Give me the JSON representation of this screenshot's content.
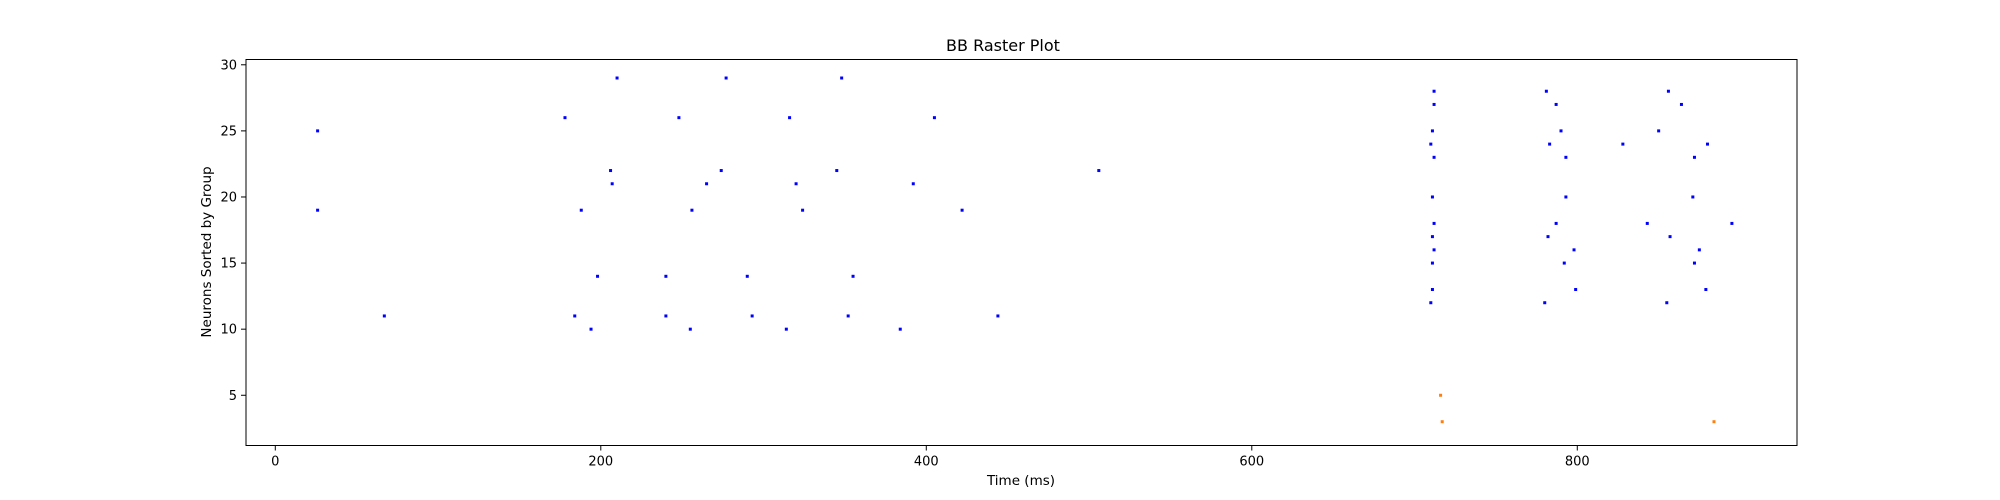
{
  "chart_data": {
    "type": "scatter",
    "title": "BB Raster Plot",
    "xlabel": "Time (ms)",
    "ylabel": "Neurons Sorted by Group",
    "xlim": [
      -18,
      935
    ],
    "ylim": [
      1.2,
      30.4
    ],
    "xticks": [
      0,
      200,
      400,
      600,
      800
    ],
    "yticks": [
      5,
      10,
      15,
      20,
      25,
      30
    ],
    "grid": false,
    "series": [
      {
        "color": "#0000ff",
        "points": [
          [
            26,
            25
          ],
          [
            26,
            19
          ],
          [
            67,
            11
          ],
          [
            178,
            26
          ],
          [
            184,
            11
          ],
          [
            188,
            19
          ],
          [
            194,
            10
          ],
          [
            198,
            14
          ],
          [
            206,
            22
          ],
          [
            207,
            21
          ],
          [
            210,
            29
          ],
          [
            240,
            11
          ],
          [
            240,
            14
          ],
          [
            248,
            26
          ],
          [
            255,
            10
          ],
          [
            256,
            19
          ],
          [
            265,
            21
          ],
          [
            274,
            22
          ],
          [
            277,
            29
          ],
          [
            290,
            14
          ],
          [
            293,
            11
          ],
          [
            314,
            10
          ],
          [
            316,
            26
          ],
          [
            320,
            21
          ],
          [
            324,
            19
          ],
          [
            345,
            22
          ],
          [
            348,
            29
          ],
          [
            352,
            11
          ],
          [
            355,
            14
          ],
          [
            384,
            10
          ],
          [
            392,
            21
          ],
          [
            405,
            26
          ],
          [
            422,
            19
          ],
          [
            444,
            11
          ],
          [
            506,
            22
          ],
          [
            712,
            28
          ],
          [
            712,
            27
          ],
          [
            711,
            25
          ],
          [
            710,
            24
          ],
          [
            712,
            23
          ],
          [
            711,
            20
          ],
          [
            712,
            18
          ],
          [
            711,
            17
          ],
          [
            712,
            16
          ],
          [
            711,
            15
          ],
          [
            711,
            13
          ],
          [
            710,
            12
          ],
          [
            781,
            28
          ],
          [
            787,
            27
          ],
          [
            783,
            24
          ],
          [
            790,
            25
          ],
          [
            793,
            23
          ],
          [
            793,
            20
          ],
          [
            787,
            18
          ],
          [
            782,
            17
          ],
          [
            798,
            16
          ],
          [
            792,
            15
          ],
          [
            799,
            13
          ],
          [
            780,
            12
          ],
          [
            828,
            24
          ],
          [
            843,
            18
          ],
          [
            850,
            25
          ],
          [
            856,
            28
          ],
          [
            857,
            17
          ],
          [
            855,
            12
          ],
          [
            864,
            27
          ],
          [
            872,
            23
          ],
          [
            871,
            20
          ],
          [
            875,
            16
          ],
          [
            872,
            15
          ],
          [
            880,
            24
          ],
          [
            879,
            13
          ],
          [
            895,
            18
          ]
        ]
      },
      {
        "color": "#ff7f0e",
        "points": [
          [
            716,
            5
          ],
          [
            717,
            3
          ],
          [
            884,
            3
          ]
        ]
      }
    ]
  }
}
